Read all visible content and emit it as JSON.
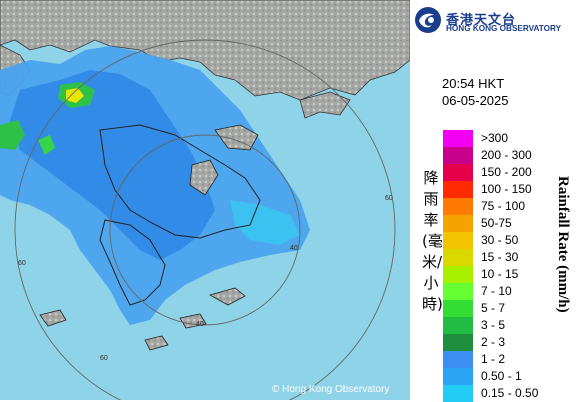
{
  "brand": {
    "name_cn": "香港天文台",
    "name_en": "HONG KONG OBSERVATORY",
    "logo_icon": "hko-swirl-logo-icon",
    "color": "#1b3e8c"
  },
  "timestamp": {
    "time": "20:54 HKT",
    "date": "06-05-2025"
  },
  "legend": {
    "title_cn": "降雨率(毫米/小時)",
    "title_en": "Rainfall Rate (mm/h)",
    "entries": [
      {
        "label": ">300",
        "color": "#f200f2"
      },
      {
        "label": "200 - 300",
        "color": "#c8008c"
      },
      {
        "label": "150 - 200",
        "color": "#e6004b"
      },
      {
        "label": "100 - 150",
        "color": "#ff2a00"
      },
      {
        "label": "75 - 100",
        "color": "#ff7a00"
      },
      {
        "label": "50-75",
        "color": "#f5a300"
      },
      {
        "label": "30 - 50",
        "color": "#f2c300"
      },
      {
        "label": "15 - 30",
        "color": "#d9d900"
      },
      {
        "label": "10 - 15",
        "color": "#a8f000"
      },
      {
        "label": "7 - 10",
        "color": "#66ff33"
      },
      {
        "label": "5 - 7",
        "color": "#33dd33"
      },
      {
        "label": "3 - 5",
        "color": "#22bb44"
      },
      {
        "label": "2 - 3",
        "color": "#1f8f3f"
      },
      {
        "label": "1 - 2",
        "color": "#3d8ef0"
      },
      {
        "label": "0.50 - 1",
        "color": "#2aa4f4"
      },
      {
        "label": "0.15 - 0.50",
        "color": "#22ccf5"
      }
    ]
  },
  "map": {
    "range_ring_labels": [
      "60",
      "60",
      "60",
      "40",
      "40"
    ],
    "copyright": "© Hong Kong Observatory",
    "sea_color": "#8fd3e8",
    "land_color": "#9ea3a0"
  }
}
